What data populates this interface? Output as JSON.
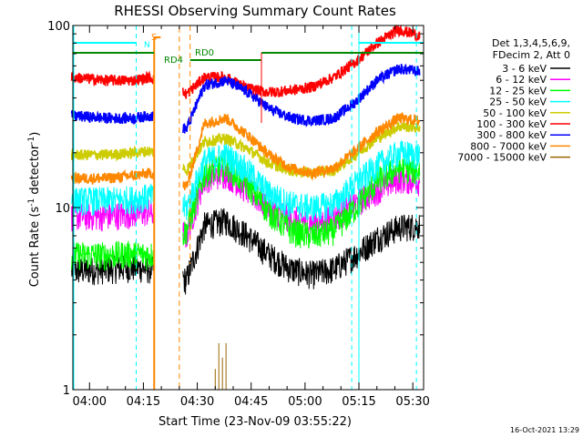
{
  "chart_data": {
    "type": "line",
    "title": "RHESSI Observing Summary Count Rates",
    "xlabel": "Start Time (23-Nov-09 03:55:22)",
    "ylabel": "Count Rate (s⁻¹ detector⁻¹)",
    "ylabel_main": "Count Rate (s",
    "ylabel_sup1": "-1",
    "ylabel_mid": " detector",
    "ylabel_sup2": "-1",
    "ylabel_end": ")",
    "y_scale": "log",
    "ylim": [
      1,
      100
    ],
    "xlim": [
      "03:55:22",
      "05:33:00"
    ],
    "xticks": [
      "04:00",
      "04:15",
      "04:30",
      "04:45",
      "05:00",
      "05:15",
      "05:30"
    ],
    "yticks": [
      "1",
      "10",
      "100"
    ],
    "timestamp": "16-Oct-2021 13:29",
    "legend": {
      "header1": "Det 1,3,4,5,6,9,",
      "header2": "FDecim 2, Att 0",
      "placement": "right",
      "entries": [
        {
          "label": "3 - 6 keV",
          "color": "#000000"
        },
        {
          "label": "6 - 12 keV",
          "color": "#ff00ff"
        },
        {
          "label": "12 - 25 keV",
          "color": "#00ff00"
        },
        {
          "label": "25 - 50 keV",
          "color": "#00ffff"
        },
        {
          "label": "50 - 100 keV",
          "color": "#cccc00"
        },
        {
          "label": "100 - 300 keV",
          "color": "#ff0000"
        },
        {
          "label": "300 - 800 keV",
          "color": "#0000ff"
        },
        {
          "label": "800 - 7000 keV",
          "color": "#ff8800"
        },
        {
          "label": "7000 - 15000 keV",
          "color": "#996600"
        }
      ]
    },
    "annotations": {
      "saa_label": "S",
      "night_label": "N",
      "rd4_label": "RD4",
      "rd0_label": "RD0"
    },
    "data_gap": [
      "04:18",
      "04:26"
    ],
    "eclipse_markers": [
      "04:13",
      "05:13",
      "05:31"
    ],
    "series": [
      {
        "name": "3 - 6 keV",
        "color": "#000000",
        "x": [
          "03:55",
          "04:05",
          "04:12",
          "04:17",
          "04:27",
          "04:32",
          "04:38",
          "04:44",
          "04:50",
          "04:56",
          "05:02",
          "05:08",
          "05:14",
          "05:20",
          "05:26",
          "05:32"
        ],
        "y": [
          4.5,
          4.6,
          4.7,
          4.6,
          4.0,
          8.0,
          8.5,
          7.0,
          5.5,
          4.6,
          4.3,
          4.6,
          5.5,
          6.8,
          7.8,
          8.0
        ]
      },
      {
        "name": "6 - 12 keV",
        "color": "#ff00ff",
        "x": [
          "03:55",
          "04:05",
          "04:12",
          "04:17",
          "04:27",
          "04:32",
          "04:38",
          "04:44",
          "04:50",
          "04:56",
          "05:02",
          "05:08",
          "05:14",
          "05:20",
          "05:26",
          "05:32"
        ],
        "y": [
          9.0,
          9.0,
          9.3,
          9.5,
          7.0,
          14.5,
          15.5,
          12.5,
          10.0,
          8.7,
          8.3,
          8.7,
          10.5,
          12.5,
          14.5,
          14.0
        ]
      },
      {
        "name": "12 - 25 keV",
        "color": "#00ff00",
        "x": [
          "03:55",
          "04:05",
          "04:12",
          "04:17",
          "04:27",
          "04:32",
          "04:38",
          "04:44",
          "04:50",
          "04:56",
          "05:02",
          "05:08",
          "05:14",
          "05:20",
          "05:26",
          "05:32"
        ],
        "y": [
          5.5,
          5.5,
          5.6,
          5.5,
          7.5,
          15.5,
          17.0,
          13.5,
          9.5,
          7.5,
          7.0,
          7.5,
          10.0,
          14.0,
          16.5,
          16.0
        ]
      },
      {
        "name": "25 - 50 keV",
        "color": "#00ffff",
        "x": [
          "03:55",
          "04:05",
          "04:12",
          "04:17",
          "04:27",
          "04:32",
          "04:38",
          "04:44",
          "04:50",
          "04:56",
          "05:02",
          "05:08",
          "05:14",
          "05:20",
          "05:26",
          "05:32"
        ],
        "y": [
          11.0,
          11.0,
          11.2,
          11.5,
          10.0,
          18.0,
          19.5,
          16.0,
          12.0,
          10.5,
          10.0,
          10.5,
          13.5,
          17.0,
          20.0,
          19.5
        ]
      },
      {
        "name": "50 - 100 keV",
        "color": "#cccc00",
        "x": [
          "03:55",
          "04:05",
          "04:12",
          "04:17",
          "04:27",
          "04:32",
          "04:38",
          "04:44",
          "04:50",
          "04:56",
          "05:02",
          "05:08",
          "05:14",
          "05:20",
          "05:26",
          "05:32"
        ],
        "y": [
          19.5,
          19.5,
          20.0,
          20.5,
          16.0,
          23.0,
          24.0,
          21.0,
          17.5,
          16.0,
          15.5,
          16.0,
          19.5,
          24.0,
          28.0,
          27.5
        ]
      },
      {
        "name": "100 - 300 keV",
        "color": "#ff0000",
        "x": [
          "03:55",
          "04:05",
          "04:12",
          "04:17",
          "04:27",
          "04:32",
          "04:38",
          "04:44",
          "04:50",
          "04:56",
          "05:02",
          "05:08",
          "05:14",
          "05:20",
          "05:26",
          "05:32"
        ],
        "y": [
          52.0,
          50.0,
          50.0,
          52.0,
          42.0,
          52.0,
          52.0,
          45.0,
          43.0,
          44.0,
          46.0,
          52.0,
          63.0,
          80.0,
          95.0,
          88.0
        ]
      },
      {
        "name": "300 - 800 keV",
        "color": "#0000ff",
        "x": [
          "03:55",
          "04:05",
          "04:12",
          "04:17",
          "04:27",
          "04:32",
          "04:38",
          "04:44",
          "04:50",
          "04:56",
          "05:02",
          "05:08",
          "05:14",
          "05:20",
          "05:26",
          "05:32"
        ],
        "y": [
          32.0,
          31.0,
          31.0,
          32.0,
          27.0,
          47.0,
          50.0,
          43.0,
          35.0,
          31.0,
          30.0,
          31.0,
          38.0,
          50.0,
          58.0,
          56.0
        ]
      },
      {
        "name": "800 - 7000 keV",
        "color": "#ff8800",
        "x": [
          "03:55",
          "04:05",
          "04:12",
          "04:17",
          "04:27",
          "04:32",
          "04:38",
          "04:44",
          "04:50",
          "04:56",
          "05:02",
          "05:08",
          "05:14",
          "05:20",
          "05:26",
          "05:32"
        ],
        "y": [
          14.5,
          14.5,
          15.0,
          15.5,
          13.0,
          29.0,
          31.0,
          25.0,
          19.5,
          16.5,
          15.5,
          16.5,
          20.5,
          26.0,
          31.0,
          30.0
        ]
      },
      {
        "name": "7000 - 15000 keV",
        "color": "#996600",
        "x": [
          "04:35",
          "04:36",
          "04:37",
          "04:38"
        ],
        "y": [
          1.3,
          1.8,
          1.5,
          1.8
        ]
      }
    ]
  }
}
